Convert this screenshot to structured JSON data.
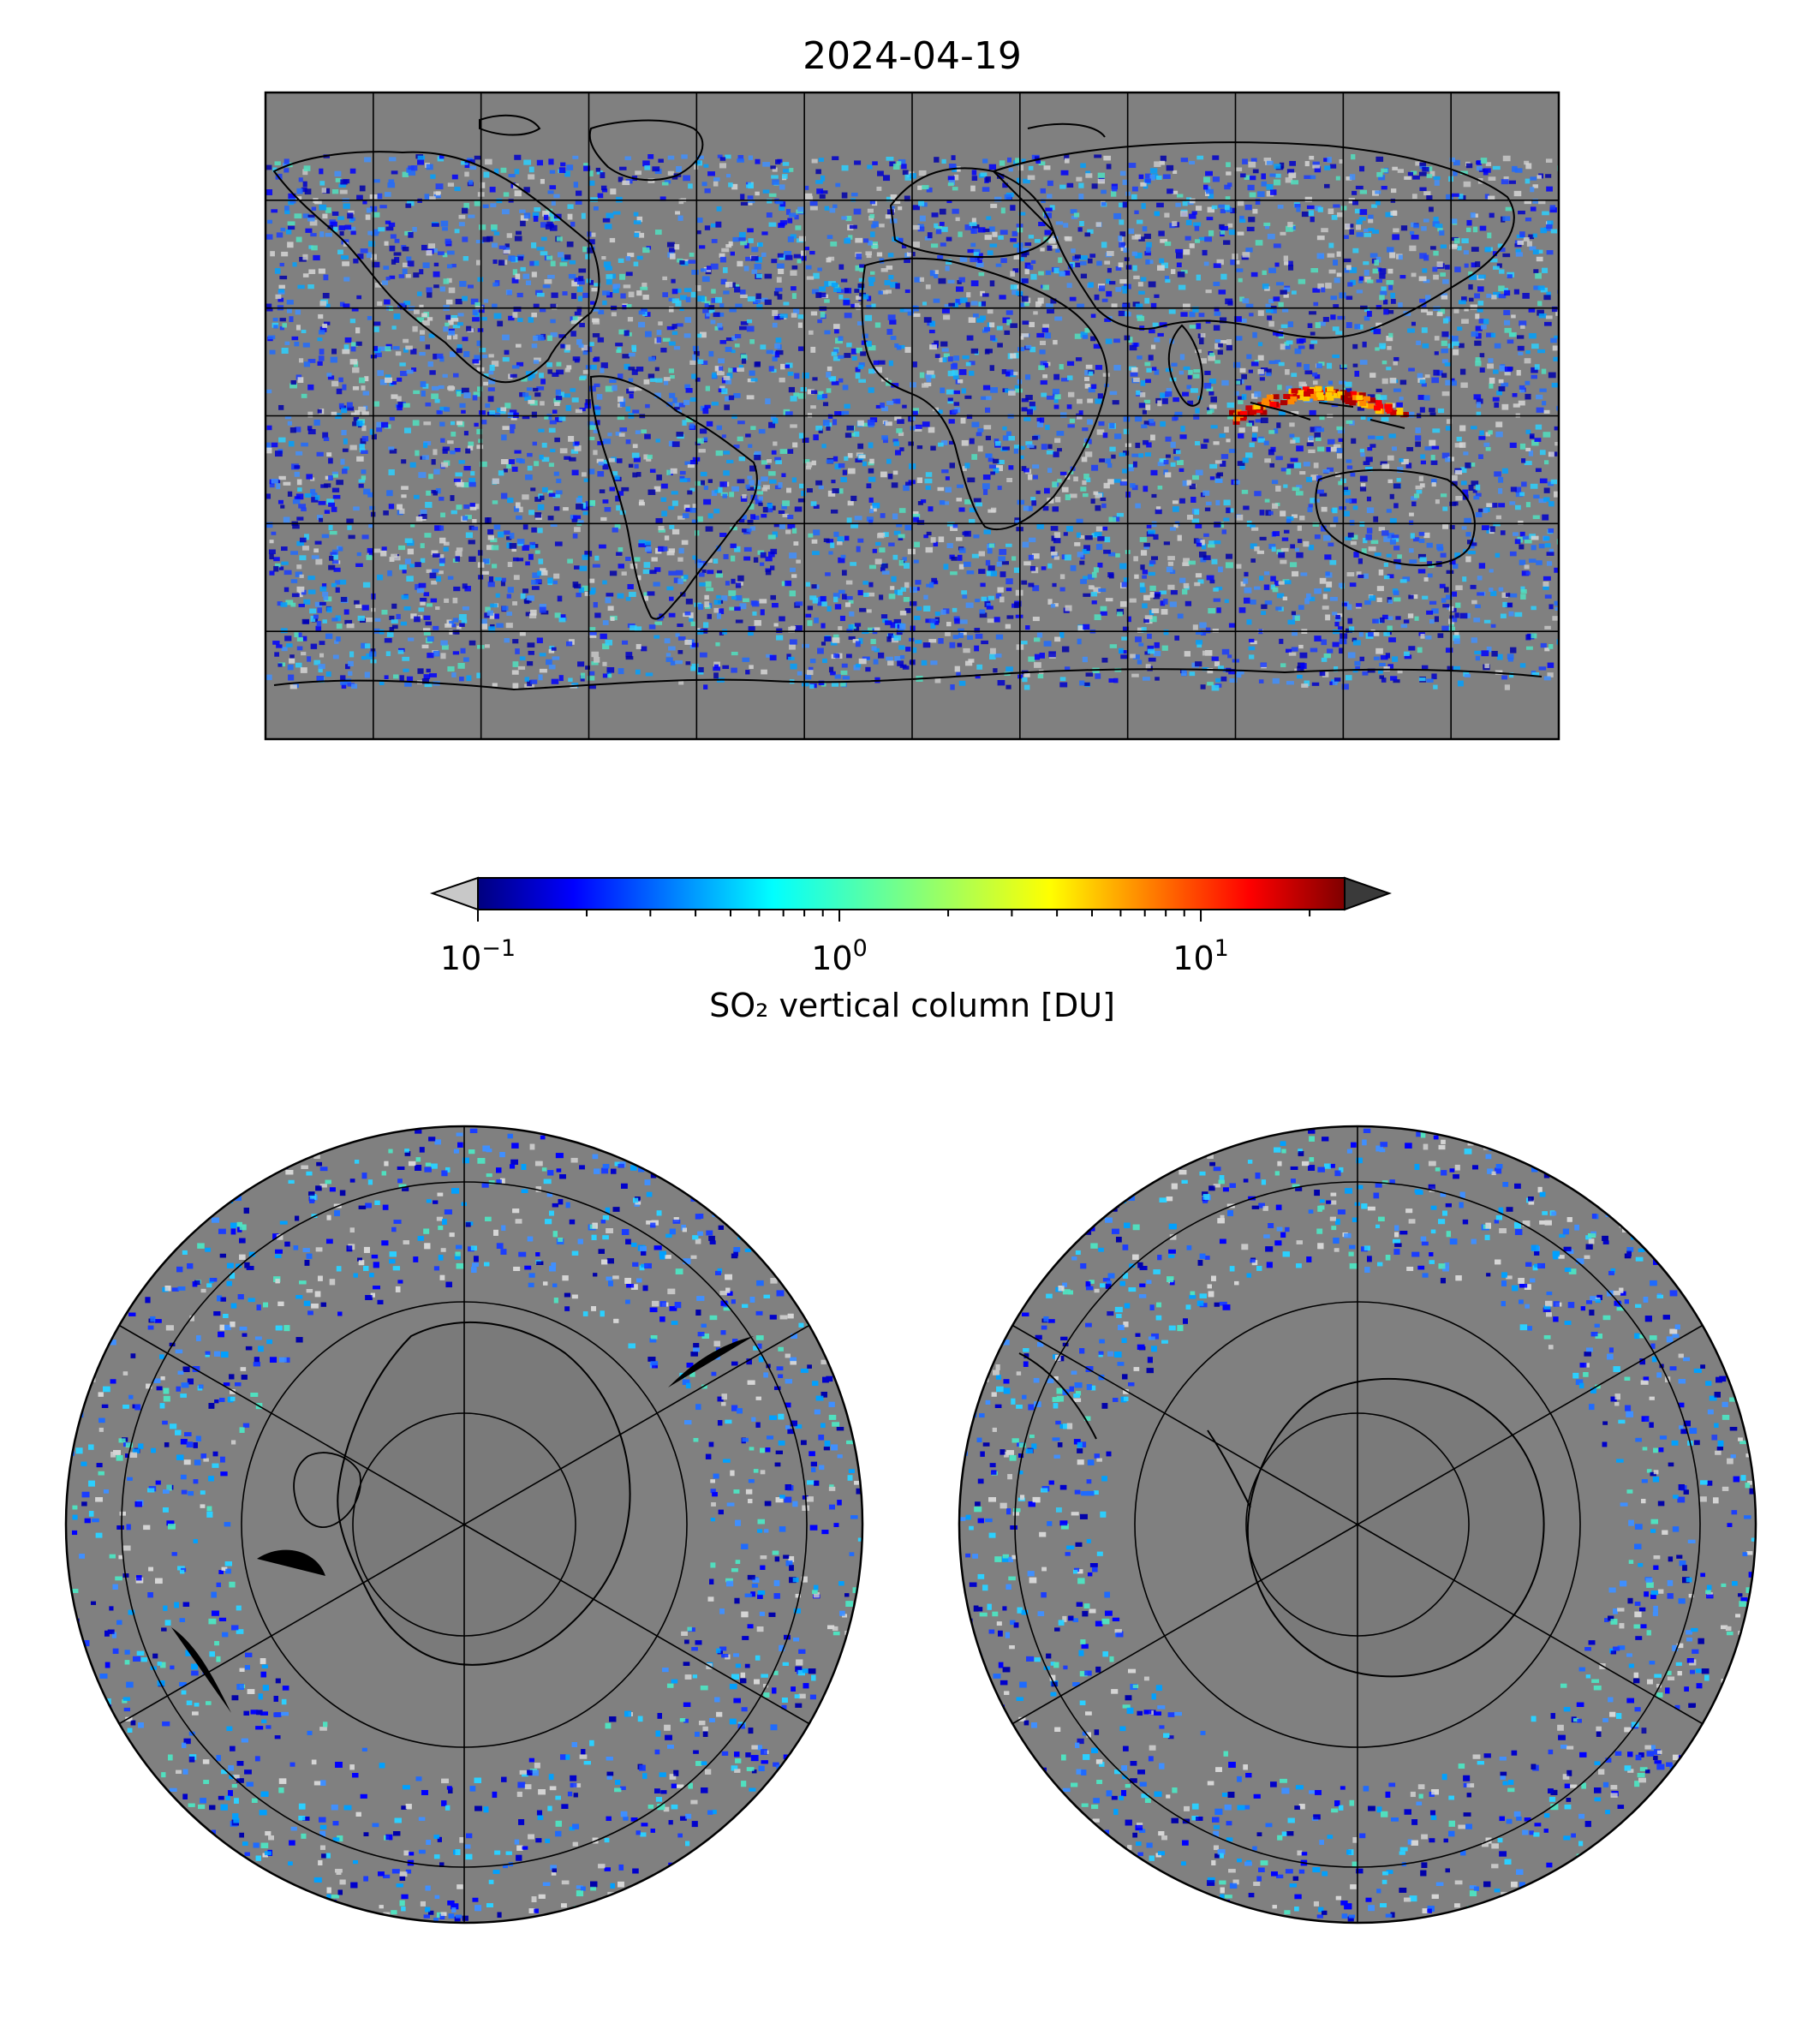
{
  "title": "2024-04-19",
  "colorbar": {
    "label": "SO₂ vertical column [DU]",
    "scale": "log",
    "range": [
      0.1,
      25
    ],
    "ticks": [
      {
        "value": 0.1,
        "base": "10",
        "exp": "−1"
      },
      {
        "value": 1,
        "base": "10",
        "exp": "0"
      },
      {
        "value": 10,
        "base": "10",
        "exp": "1"
      }
    ],
    "colormap": "jet",
    "under_color": "#c8c8c8",
    "over_color": "#3a3a3a"
  },
  "maps": [
    {
      "name": "global-map",
      "projection": "plate-carree",
      "gridlines": "30 deg",
      "background": "#808080"
    },
    {
      "name": "north-polar-map",
      "projection": "north-polar-stereographic",
      "gridlines": "on",
      "background": "#808080"
    },
    {
      "name": "south-polar-map",
      "projection": "south-polar-stereographic",
      "gridlines": "on",
      "background": "#808080"
    }
  ]
}
